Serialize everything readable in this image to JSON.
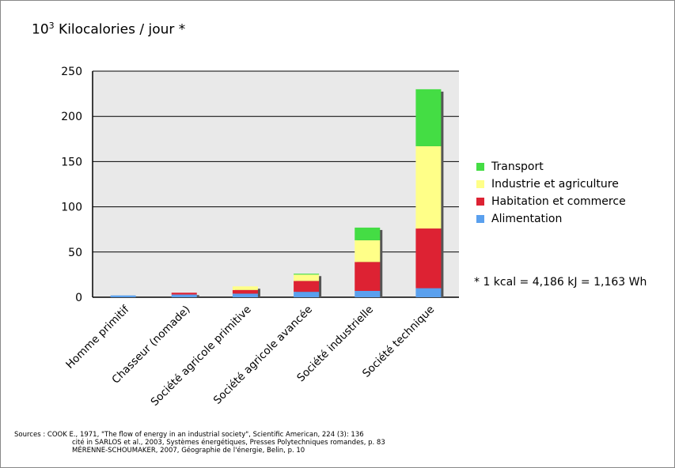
{
  "chart_data": {
    "type": "bar",
    "stacked": true,
    "title_base": "10",
    "title_exponent": "3",
    "title_text": "Kilocalories / jour *",
    "categories": [
      "Homme primitif",
      "Chasseur (nomade)",
      "Société agricole primitive",
      "Société agricole avancée",
      "Société industrielle",
      "Société technique"
    ],
    "series": [
      {
        "name": "Alimentation",
        "color": "#5aa0ee",
        "values": [
          2,
          3,
          4,
          6,
          7,
          10
        ]
      },
      {
        "name": "Habitation et commerce",
        "color": "#dd2233",
        "values": [
          0,
          2,
          4,
          12,
          32,
          66
        ]
      },
      {
        "name": "Industrie et agriculture",
        "color": "#ffff88",
        "values": [
          0,
          0,
          4,
          7,
          24,
          91
        ]
      },
      {
        "name": "Transport",
        "color": "#44dd44",
        "values": [
          0,
          0,
          0,
          1,
          14,
          63
        ]
      }
    ],
    "legend_order": [
      "Transport",
      "Industrie et agriculture",
      "Habitation et commerce",
      "Alimentation"
    ],
    "ylim": [
      0,
      250
    ],
    "yticks": [
      "0",
      "50",
      "100",
      "150",
      "200",
      "250"
    ],
    "grid": true,
    "legend_position": "right"
  },
  "footnote": "* 1 kcal = 4,186 kJ = 1,163 Wh",
  "sources": [
    "Sources : COOK E., 1971, \"The flow of energy in an industrial society\", Scientific American, 224 (3): 136",
    "cité in SARLOS et al., 2003, Systèmes énergétiques, Presses Polytechniques romandes, p. 83",
    "MÉRENNE-SCHOUMAKER, 2007, Géographie de l'énergie, Belin, p. 10"
  ]
}
